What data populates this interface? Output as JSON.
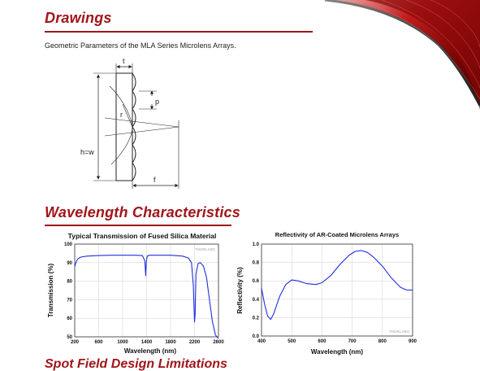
{
  "drawings": {
    "title": "Drawings",
    "caption": "Geometric Parameters of the MLA Series Microlens Arrays.",
    "labels": {
      "t": "t",
      "p": "p",
      "r": "r",
      "hw": "h=w",
      "f": "f"
    }
  },
  "wavelength": {
    "title": "Wavelength Characteristics"
  },
  "next_section": {
    "title": "Spot Field Design Limitations"
  },
  "colors": {
    "accent": "#a0151b",
    "series": "#1f2fe0"
  },
  "chart_data": [
    {
      "type": "line",
      "title": "Typical Transmission of Fused Silica Material",
      "xlabel": "Wavelength (nm)",
      "ylabel": "Transmission (%)",
      "watermark": "THORLABS",
      "xlim": [
        200,
        2600
      ],
      "ylim": [
        50,
        100
      ],
      "xticks": [
        200,
        600,
        1000,
        1400,
        1800,
        2200,
        2600
      ],
      "yticks": [
        50,
        60,
        70,
        80,
        90,
        100
      ],
      "xtick_labels": [
        "200",
        "600",
        "1000",
        "1400",
        "1800",
        "2200",
        "2600"
      ],
      "ytick_labels": [
        "50",
        "60",
        "70",
        "80",
        "90",
        "100"
      ],
      "grid": true,
      "series": [
        {
          "x": [
            200,
            220,
            250,
            300,
            400,
            600,
            800,
            1000,
            1200,
            1330,
            1370,
            1385,
            1395,
            1410,
            1450,
            1600,
            1800,
            2000,
            2100,
            2150,
            2180,
            2200,
            2210,
            2225,
            2260,
            2300,
            2350,
            2400,
            2450,
            2500,
            2550,
            2600
          ],
          "y": [
            88,
            90,
            92,
            93,
            93.5,
            93.8,
            94,
            94,
            94,
            93.8,
            91,
            83,
            90,
            93.5,
            94,
            94,
            94,
            93.5,
            92.5,
            90,
            78,
            58,
            62,
            84,
            89.5,
            90,
            88,
            82,
            70,
            58,
            51,
            49
          ]
        }
      ]
    },
    {
      "type": "line",
      "title": "Reflectivity of AR-Coated Microlens Arrays",
      "xlabel": "Wavelength (nm)",
      "ylabel": "Reflectivity (%)",
      "watermark": "THORLABS",
      "xlim": [
        400,
        900
      ],
      "ylim": [
        0,
        1.0
      ],
      "xticks": [
        400,
        500,
        600,
        700,
        800,
        900
      ],
      "yticks": [
        0,
        0.2,
        0.4,
        0.6,
        0.8,
        1.0
      ],
      "xtick_labels": [
        "400",
        "500",
        "600",
        "700",
        "800",
        "900"
      ],
      "ytick_labels": [
        "0.0",
        "0.2",
        "0.4",
        "0.6",
        "0.8",
        "1.0"
      ],
      "grid": true,
      "series": [
        {
          "x": [
            400,
            410,
            420,
            430,
            440,
            460,
            480,
            500,
            520,
            550,
            580,
            600,
            630,
            660,
            690,
            710,
            730,
            750,
            770,
            800,
            830,
            860,
            880,
            900
          ],
          "y": [
            0.52,
            0.35,
            0.22,
            0.18,
            0.24,
            0.43,
            0.56,
            0.61,
            0.6,
            0.57,
            0.56,
            0.58,
            0.66,
            0.78,
            0.88,
            0.92,
            0.93,
            0.91,
            0.86,
            0.76,
            0.63,
            0.53,
            0.5,
            0.5
          ]
        }
      ]
    }
  ]
}
